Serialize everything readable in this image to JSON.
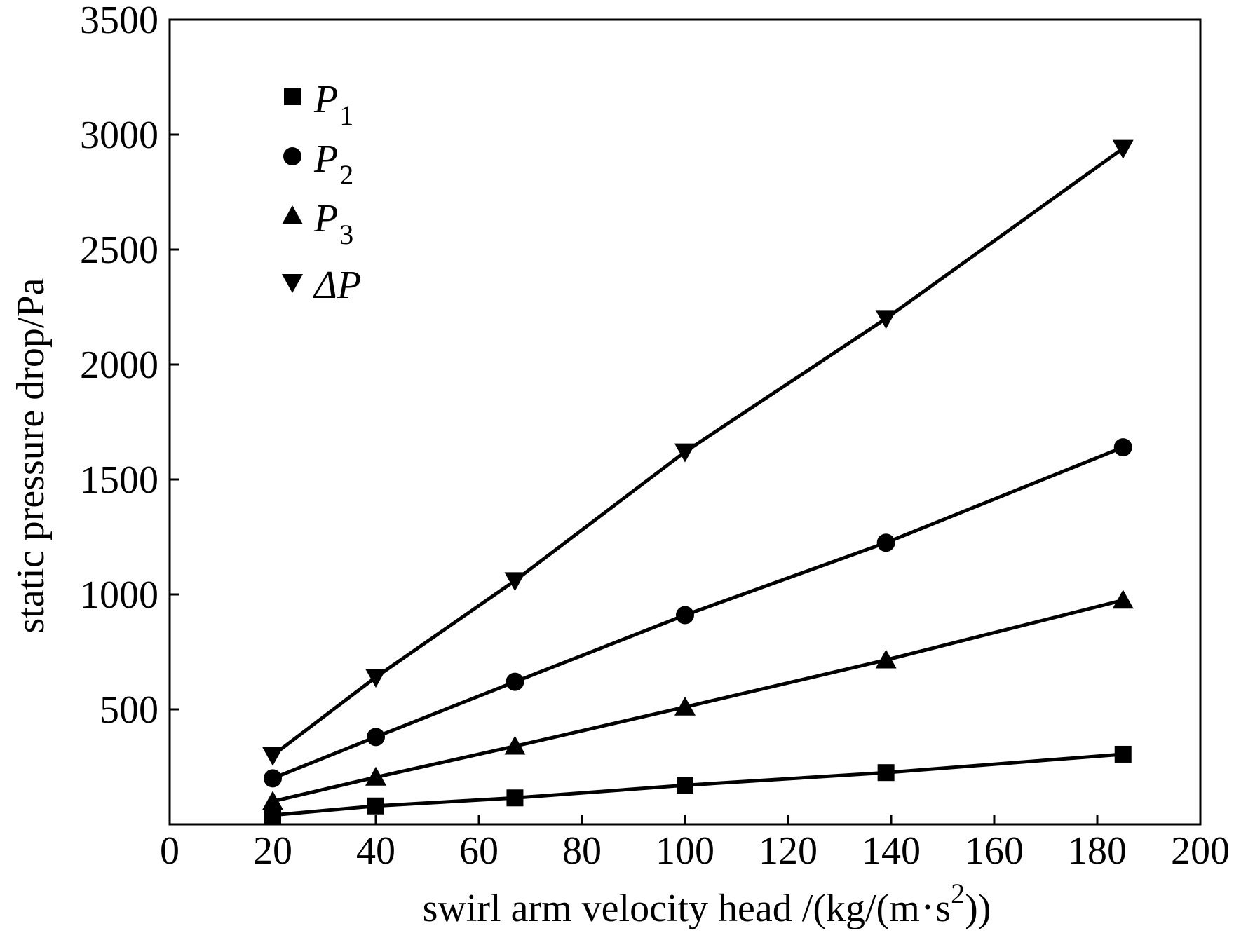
{
  "chart_data": {
    "type": "line",
    "title": "",
    "xlabel_parts": {
      "main": "swirl arm velocity head",
      "sep": "/(kg/(m",
      "dot": "•",
      "s": "s",
      "exp": "2",
      "close": "))"
    },
    "ylabel": "static pressure drop/Pa",
    "xlim": [
      0,
      200
    ],
    "ylim": [
      0,
      3500
    ],
    "x_ticks": [
      0,
      20,
      40,
      60,
      80,
      100,
      120,
      140,
      160,
      180,
      200
    ],
    "y_ticks": [
      500,
      1000,
      1500,
      2000,
      2500,
      3000,
      3500
    ],
    "x": [
      20,
      40,
      67,
      100,
      139,
      185
    ],
    "series": [
      {
        "name": "P",
        "sub": "1",
        "marker": "square",
        "values": [
          40,
          80,
          115,
          170,
          225,
          305
        ]
      },
      {
        "name": "P",
        "sub": "2",
        "marker": "circle",
        "values": [
          200,
          380,
          620,
          910,
          1225,
          1640
        ]
      },
      {
        "name": "P",
        "sub": "3",
        "marker": "triangle-up",
        "values": [
          100,
          205,
          340,
          510,
          715,
          975
        ]
      },
      {
        "name": "ΔP",
        "sub": "",
        "marker": "triangle-down",
        "values": [
          300,
          640,
          1060,
          1620,
          2200,
          2940
        ]
      }
    ],
    "legend_position": "top-left",
    "grid": false
  }
}
